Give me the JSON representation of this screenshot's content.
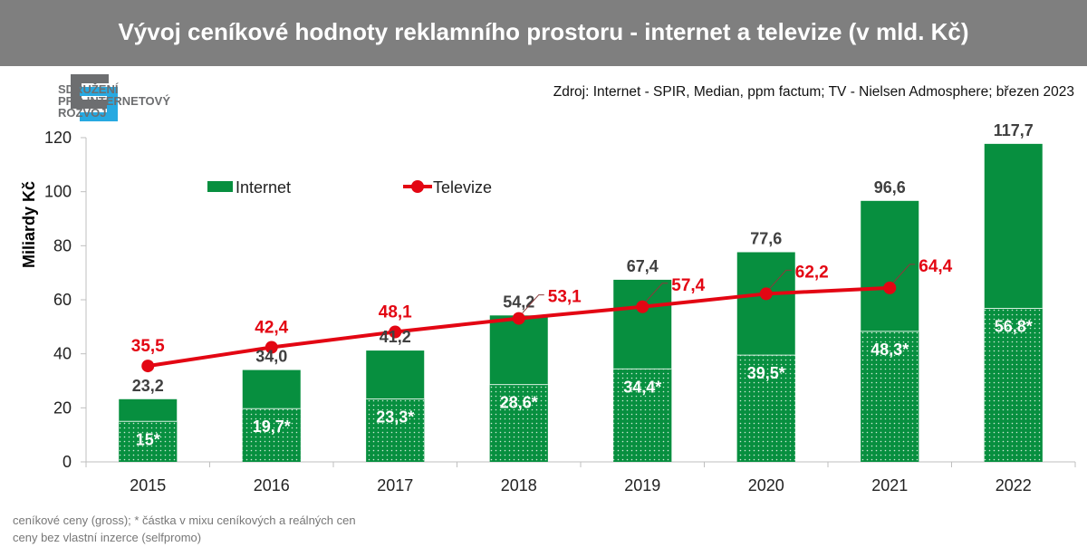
{
  "header": {
    "title": "Vývoj ceníkové hodnoty reklamního prostoru - internet a televize (v mld. Kč)"
  },
  "logo": {
    "lines": [
      "SDRUŽENÍ",
      "PRO INTERNETOVÝ",
      "ROZVOJ"
    ],
    "colors": {
      "gray": "#6d6e70",
      "blue": "#27a9e1"
    }
  },
  "source": "Zdroj: Internet - SPIR, Median, ppm factum; TV - Nielsen Admosphere; březen 2023",
  "footnotes": [
    "ceníkové ceny (gross); * částka v mixu ceníkových a reálných cen",
    "ceny bez vlastní inzerce (selfpromo)"
  ],
  "chart_data": {
    "type": "bar",
    "title": "Vývoj ceníkové hodnoty reklamního prostoru - internet a televize (v mld. Kč)",
    "xlabel": "",
    "ylabel": "Miliardy Kč",
    "ylim": [
      0,
      120
    ],
    "yticks": [
      0,
      20,
      40,
      60,
      80,
      100,
      120
    ],
    "grid": false,
    "legend_position": "top-left",
    "categories": [
      "2015",
      "2016",
      "2017",
      "2018",
      "2019",
      "2020",
      "2021",
      "2022"
    ],
    "series": [
      {
        "name": "Internet",
        "type": "bar",
        "color": "#078f3f",
        "values": [
          23.2,
          34.0,
          41.2,
          54.2,
          67.4,
          77.6,
          96.6,
          117.7
        ],
        "labels": [
          "23,2",
          "34,0",
          "41,2",
          "54,2",
          "67,4",
          "77,6",
          "96,6",
          "117,7"
        ]
      },
      {
        "name": "Internet (mix ceníkových a reálných cen)",
        "type": "bar-inner-dotted",
        "color": "#078f3f",
        "values": [
          15,
          19.7,
          23.3,
          28.6,
          34.4,
          39.5,
          48.3,
          56.8
        ],
        "labels": [
          "15*",
          "19,7*",
          "23,3*",
          "28,6*",
          "34,4*",
          "39,5*",
          "48,3*",
          "56,8*"
        ]
      },
      {
        "name": "Televize",
        "type": "line",
        "color": "#e30613",
        "values": [
          35.5,
          42.4,
          48.1,
          53.1,
          57.4,
          62.2,
          64.4,
          null
        ],
        "labels": [
          "35,5",
          "42,4",
          "48,1",
          "53,1",
          "57,4",
          "62,2",
          "64,4",
          null
        ]
      }
    ],
    "legend": [
      {
        "label": "Internet",
        "marker": "bar",
        "color": "#078f3f"
      },
      {
        "label": "Televize",
        "marker": "line-dot",
        "color": "#e30613"
      }
    ]
  }
}
